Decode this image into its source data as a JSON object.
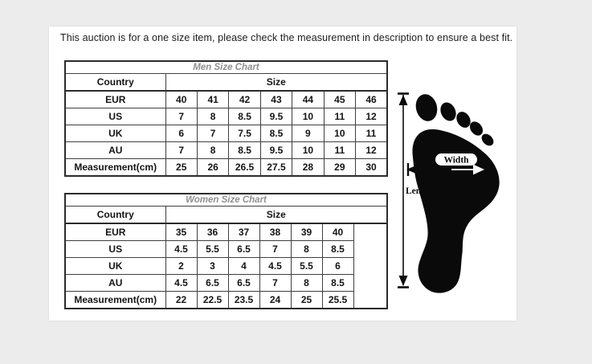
{
  "notice": "This auction is for a one size item, please check the measurement in description to ensure a best fit.",
  "men_chart": {
    "title": "Men Size Chart",
    "country_header": "Country",
    "size_header": "Size",
    "rows": [
      {
        "label": "EUR",
        "values": [
          "40",
          "41",
          "42",
          "43",
          "44",
          "45",
          "46"
        ]
      },
      {
        "label": "US",
        "values": [
          "7",
          "8",
          "8.5",
          "9.5",
          "10",
          "11",
          "12"
        ]
      },
      {
        "label": "UK",
        "values": [
          "6",
          "7",
          "7.5",
          "8.5",
          "9",
          "10",
          "11"
        ]
      },
      {
        "label": "AU",
        "values": [
          "7",
          "8",
          "8.5",
          "9.5",
          "10",
          "11",
          "12"
        ]
      },
      {
        "label": "Measurement(cm)",
        "values": [
          "25",
          "26",
          "26.5",
          "27.5",
          "28",
          "29",
          "30"
        ]
      }
    ]
  },
  "women_chart": {
    "title": "Women Size Chart",
    "country_header": "Country",
    "size_header": "Size",
    "has_trailing_empty_column": true,
    "rows": [
      {
        "label": "EUR",
        "values": [
          "35",
          "36",
          "37",
          "38",
          "39",
          "40"
        ]
      },
      {
        "label": "US",
        "values": [
          "4.5",
          "5.5",
          "6.5",
          "7",
          "8",
          "8.5"
        ]
      },
      {
        "label": "UK",
        "values": [
          "2",
          "3",
          "4",
          "4.5",
          "5.5",
          "6"
        ]
      },
      {
        "label": "AU",
        "values": [
          "4.5",
          "6.5",
          "6.5",
          "7",
          "8",
          "8.5"
        ]
      },
      {
        "label": "Measurement(cm)",
        "values": [
          "22",
          "22.5",
          "23.5",
          "24",
          "25",
          "25.5"
        ]
      }
    ]
  },
  "foot_diagram": {
    "width_label": "Width",
    "length_label": "Length"
  },
  "colors": {
    "page_background": "#ececec",
    "panel_background": "#ffffff",
    "table_border": "#3f3f3f",
    "title_text": "#8f8f8f",
    "ink": "#0b0b0b"
  }
}
